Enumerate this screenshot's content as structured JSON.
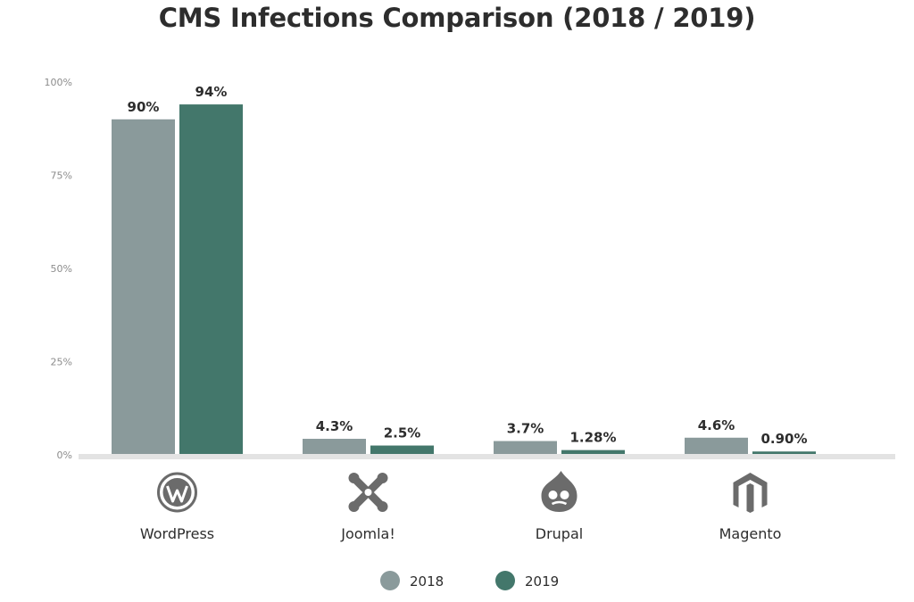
{
  "chart_data": {
    "type": "bar",
    "title": "CMS Infections Comparison (2018 / 2019)",
    "xlabel": "",
    "ylabel": "",
    "ylim": [
      0,
      100
    ],
    "yticks": [
      {
        "value": 0,
        "label": "0%"
      },
      {
        "value": 25,
        "label": "25%"
      },
      {
        "value": 50,
        "label": "50%"
      },
      {
        "value": 75,
        "label": "75%"
      },
      {
        "value": 100,
        "label": "100%"
      }
    ],
    "categories": [
      "WordPress",
      "Joomla!",
      "Drupal",
      "Magento"
    ],
    "category_icons": [
      "wordpress-logo-icon",
      "joomla-logo-icon",
      "drupal-logo-icon",
      "magento-logo-icon"
    ],
    "series": [
      {
        "name": "2018",
        "color": "#8a9a9b",
        "values": [
          90,
          4.3,
          3.7,
          4.6
        ],
        "labels": [
          "90%",
          "4.3%",
          "3.7%",
          "4.6%"
        ]
      },
      {
        "name": "2019",
        "color": "#43776b",
        "values": [
          94,
          2.5,
          1.28,
          0.9
        ],
        "labels": [
          "94%",
          "2.5%",
          "1.28%",
          "0.90%"
        ]
      }
    ],
    "legend_position": "bottom-center",
    "grid": false
  }
}
